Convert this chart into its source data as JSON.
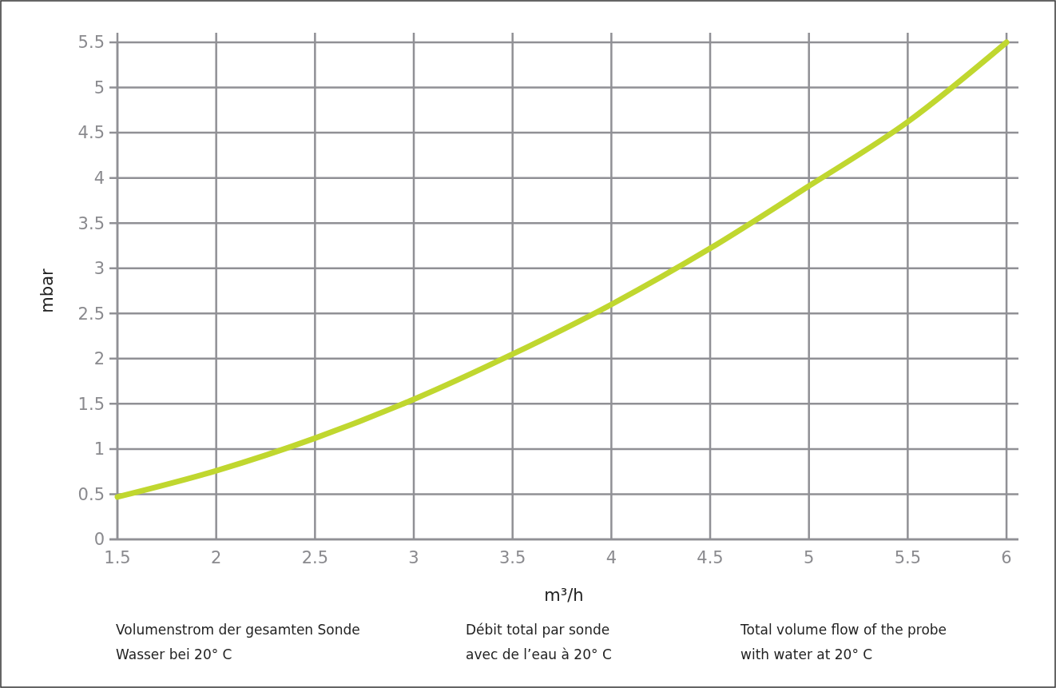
{
  "chart_data": {
    "type": "line",
    "xlabel": "m³/h",
    "ylabel": "mbar",
    "x": [
      1.5,
      2,
      2.5,
      3,
      3.5,
      4,
      4.5,
      5,
      5.5,
      6
    ],
    "series": [
      {
        "color": "#c0d72f",
        "values": [
          0.47,
          0.76,
          1.12,
          1.55,
          2.05,
          2.6,
          3.22,
          3.91,
          4.62,
          5.5
        ]
      }
    ],
    "xlim": [
      1.5,
      6.02
    ],
    "xticks": [
      1.5,
      2,
      2.5,
      3,
      3.5,
      4,
      4.5,
      5,
      5.5,
      6
    ],
    "ylim": [
      0,
      5.5
    ],
    "yticks": [
      0,
      0.5,
      1,
      1.5,
      2,
      2.5,
      3,
      3.5,
      4,
      4.5,
      5,
      5.5
    ],
    "grid": true,
    "marker": "none",
    "line_style": "solid",
    "annotations": [
      "Volumenstrom der gesamten Sonde\nWasser bei 20° C",
      "Débit total par sonde\navec de l’eau à 20° C",
      "Total volume flow of the probe\nwith water at 20° C"
    ]
  }
}
